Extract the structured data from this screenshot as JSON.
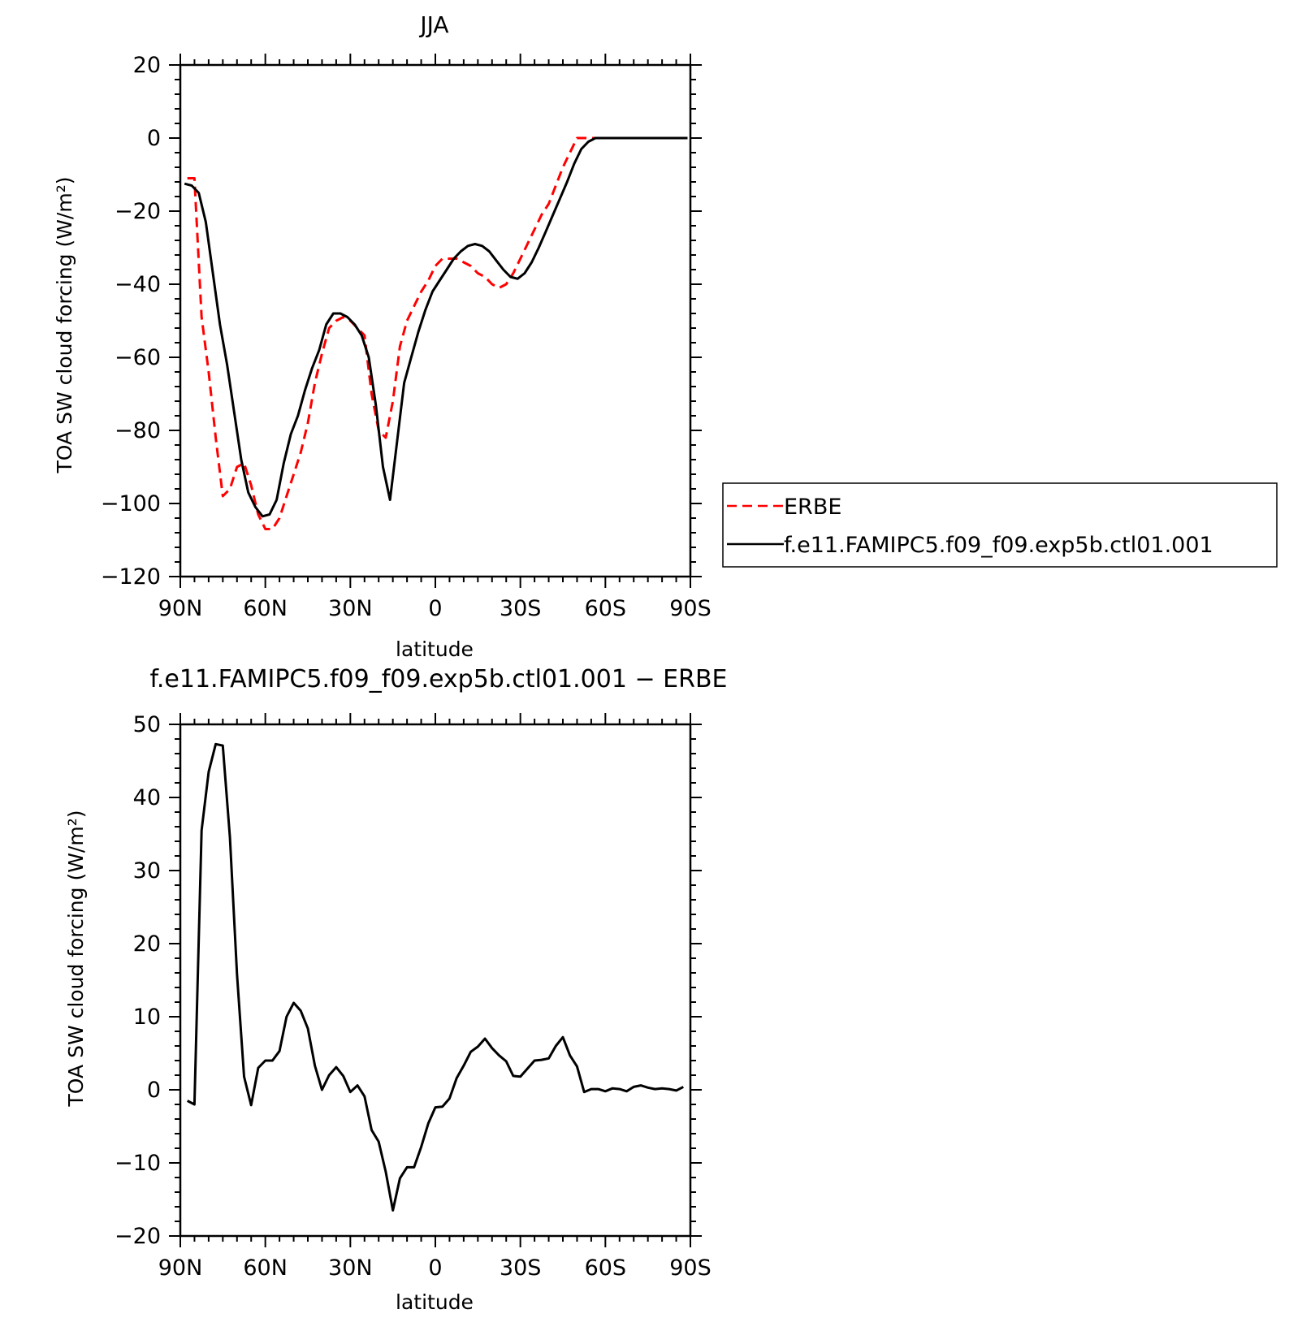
{
  "chart_data": [
    {
      "type": "line",
      "title": "JJA",
      "xlabel": "latitude",
      "ylabel": "TOA SW cloud forcing (W/m²)",
      "xlim": [
        90,
        -90
      ],
      "ylim": [
        -120,
        20
      ],
      "xticks": [
        {
          "value": 90,
          "label": "90N"
        },
        {
          "value": 60,
          "label": "60N"
        },
        {
          "value": 30,
          "label": "30N"
        },
        {
          "value": 0,
          "label": "0"
        },
        {
          "value": -30,
          "label": "30S"
        },
        {
          "value": -60,
          "label": "60S"
        },
        {
          "value": -90,
          "label": "90S"
        }
      ],
      "yticks": [
        {
          "value": 20,
          "label": "20"
        },
        {
          "value": 0,
          "label": "0"
        },
        {
          "value": -20,
          "label": "−20"
        },
        {
          "value": -40,
          "label": "−40"
        },
        {
          "value": -60,
          "label": "−60"
        },
        {
          "value": -80,
          "label": "−80"
        },
        {
          "value": -100,
          "label": "−100"
        },
        {
          "value": -120,
          "label": "−120"
        }
      ],
      "grid": false,
      "legend": {
        "placement": "right",
        "entries": [
          {
            "label": "ERBE",
            "series": 0
          },
          {
            "label": "f.e11.FAMIPC5.f09_f09.exp5b.ctl01.001",
            "series": 1
          }
        ]
      },
      "series": [
        {
          "name": "ERBE",
          "color": "#ff0000",
          "dash": "dashed",
          "x": [
            87.5,
            85,
            82.5,
            80,
            77.5,
            75,
            72.5,
            70,
            67.5,
            65,
            62.5,
            60,
            57.5,
            55,
            52.5,
            50,
            47.5,
            45,
            42.5,
            40,
            37.5,
            35,
            32.5,
            30,
            27.5,
            25,
            22.5,
            20,
            17.5,
            15,
            12.5,
            10,
            7.5,
            5,
            2.5,
            0,
            -2.5,
            -5,
            -7.5,
            -10,
            -12.5,
            -15,
            -17.5,
            -20,
            -22.5,
            -25,
            -27.5,
            -30,
            -32.5,
            -35,
            -37.5,
            -40,
            -42.5,
            -45,
            -47.5,
            -50,
            -52.5,
            -55,
            -57.5,
            -60,
            -62.5,
            -65,
            -67.5,
            -70,
            -72.5,
            -75,
            -77.5,
            -80,
            -82.5,
            -85,
            -87.5
          ],
          "y": [
            -11,
            -11,
            -49,
            -64,
            -82,
            -98,
            -96,
            -90,
            -89,
            -95,
            -103,
            -107,
            -107,
            -104,
            -98,
            -92,
            -86,
            -78,
            -67,
            -59,
            -52,
            -50,
            -49,
            -50,
            -52,
            -54,
            -70,
            -80,
            -82,
            -72,
            -57,
            -50,
            -46,
            -42,
            -39,
            -35,
            -33,
            -33,
            -33,
            -34,
            -35,
            -37,
            -38,
            -40,
            -41,
            -40,
            -37,
            -33,
            -29,
            -25,
            -21,
            -18,
            -13,
            -8,
            -4,
            0,
            0,
            0,
            0,
            0,
            0,
            0,
            0,
            0,
            0,
            0,
            0,
            0,
            0,
            0,
            0
          ]
        },
        {
          "name": "f.e11.FAMIPC5.f09_f09.exp5b.ctl01.001",
          "color": "#000000",
          "dash": "solid",
          "x": [
            88.5,
            86,
            83.5,
            81,
            78.5,
            76,
            73.5,
            71,
            68.5,
            66,
            63.5,
            61,
            58.5,
            56,
            53.5,
            51,
            48.5,
            46,
            43.5,
            41,
            38.5,
            36,
            33.5,
            31,
            28.5,
            26,
            23.5,
            21,
            18.5,
            16,
            13.5,
            11,
            8.5,
            6,
            3.5,
            1,
            -1.5,
            -4,
            -6.5,
            -9,
            -11.5,
            -14,
            -16.5,
            -19,
            -21.5,
            -24,
            -26.5,
            -29,
            -31.5,
            -34,
            -36.5,
            -39,
            -41.5,
            -44,
            -46.5,
            -49,
            -51.5,
            -54,
            -56.5,
            -59,
            -61.5,
            -64,
            -66.5,
            -69,
            -71.5,
            -74,
            -76.5,
            -79,
            -81.5,
            -84,
            -86.5,
            -89
          ],
          "y": [
            -12.5,
            -13,
            -15,
            -23,
            -37,
            -51,
            -62,
            -75,
            -88,
            -97,
            -101,
            -103.5,
            -103,
            -99,
            -89,
            -81,
            -76,
            -69,
            -63,
            -58,
            -51,
            -48,
            -48,
            -49,
            -51,
            -54,
            -60,
            -73,
            -90,
            -99,
            -83,
            -67,
            -60,
            -53,
            -47,
            -42,
            -39,
            -36,
            -33,
            -31,
            -29.5,
            -29,
            -29.5,
            -31,
            -33.5,
            -36,
            -38,
            -38.5,
            -37,
            -34,
            -30,
            -25.5,
            -21,
            -16.5,
            -12,
            -7,
            -3,
            -1,
            0,
            0,
            0,
            0,
            0,
            0,
            0,
            0,
            0,
            0,
            0,
            0,
            0,
            0
          ]
        }
      ]
    },
    {
      "type": "line",
      "title": "f.e11.FAMIPC5.f09_f09.exp5b.ctl01.001  −  ERBE",
      "xlabel": "latitude",
      "ylabel": "TOA SW cloud forcing (W/m²)",
      "xlim": [
        90,
        -90
      ],
      "ylim": [
        -20,
        50
      ],
      "xticks": [
        {
          "value": 90,
          "label": "90N"
        },
        {
          "value": 60,
          "label": "60N"
        },
        {
          "value": 30,
          "label": "30N"
        },
        {
          "value": 0,
          "label": "0"
        },
        {
          "value": -30,
          "label": "30S"
        },
        {
          "value": -60,
          "label": "60S"
        },
        {
          "value": -90,
          "label": "90S"
        }
      ],
      "yticks": [
        {
          "value": 50,
          "label": "50"
        },
        {
          "value": 40,
          "label": "40"
        },
        {
          "value": 30,
          "label": "30"
        },
        {
          "value": 20,
          "label": "20"
        },
        {
          "value": 10,
          "label": "10"
        },
        {
          "value": 0,
          "label": "0"
        },
        {
          "value": -10,
          "label": "−10"
        },
        {
          "value": -20,
          "label": "−20"
        }
      ],
      "grid": false,
      "series": [
        {
          "color": "#000000",
          "dash": "solid",
          "x": [
            87.5,
            85,
            82.5,
            80,
            77.5,
            75,
            72.5,
            70,
            67.5,
            65,
            62.5,
            60,
            57.5,
            55,
            52.5,
            50,
            47.5,
            45,
            42.5,
            40,
            37.5,
            35,
            32.5,
            30,
            27.5,
            25,
            22.5,
            20,
            17.5,
            15,
            12.5,
            10,
            7.5,
            5,
            2.5,
            0,
            -2.5,
            -5,
            -7.5,
            -10,
            -12.5,
            -15,
            -17.5,
            -20,
            -22.5,
            -25,
            -27.5,
            -30,
            -32.5,
            -35,
            -37.5,
            -40,
            -42.5,
            -45,
            -47.5,
            -50,
            -52.5,
            -55,
            -57.5,
            -60,
            -62.5,
            -65,
            -67.5,
            -70,
            -72.5,
            -75,
            -77.5,
            -80,
            -82.5,
            -85,
            -87.5
          ],
          "y": [
            -1.5,
            -2,
            35.5,
            43.5,
            47.3,
            47.1,
            34.5,
            15.8,
            1.8,
            -2.1,
            3,
            4,
            4,
            5.3,
            10,
            11.9,
            10.8,
            8.4,
            3.3,
            0,
            2,
            3.1,
            1.9,
            -0.3,
            0.6,
            -0.9,
            -5.5,
            -7.1,
            -11.2,
            -16.5,
            -12.1,
            -10.6,
            -10.6,
            -7.8,
            -4.6,
            -2.4,
            -2.3,
            -1.2,
            1.6,
            3.3,
            5.2,
            5.9,
            7,
            5.7,
            4.7,
            3.9,
            1.9,
            1.8,
            2.9,
            4,
            4.1,
            4.3,
            6,
            7.2,
            4.7,
            3.2,
            -0.3,
            0.1,
            0.1,
            -0.2,
            0.2,
            0.1,
            -0.2,
            0.4,
            0.6,
            0.3,
            0.1,
            0.2,
            0.1,
            -0.1,
            0.4
          ]
        }
      ]
    }
  ]
}
